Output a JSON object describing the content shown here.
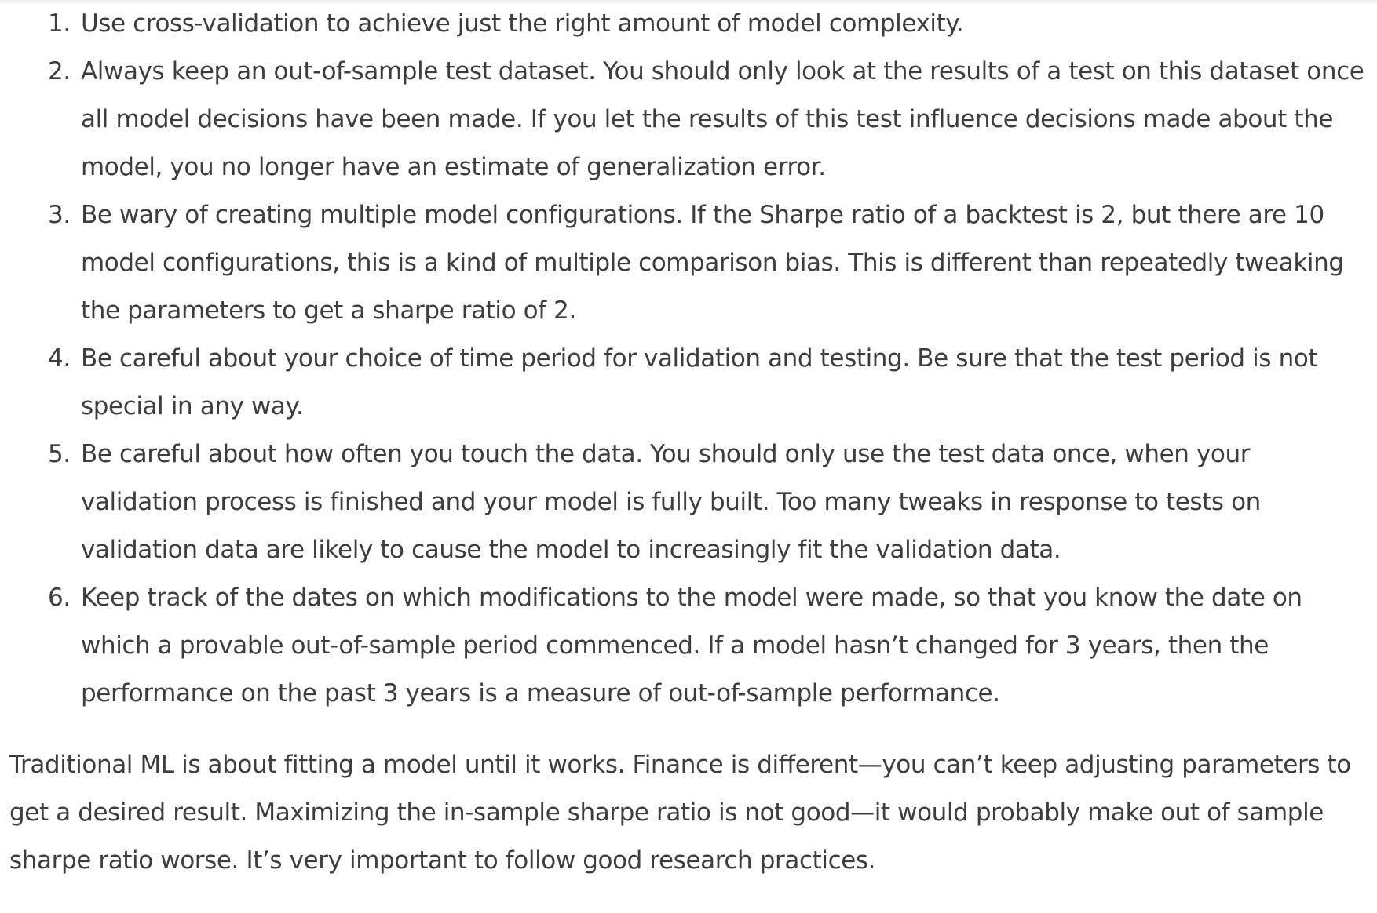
{
  "practices": [
    {
      "number": "1.",
      "text": "Use cross-validation to achieve just the right amount of model complexity."
    },
    {
      "number": "2.",
      "text": "Always keep an out-of-sample test dataset. You should only look at the results of a test on this dataset once all model decisions have been made. If you let the results of this test influence decisions made about the model, you no longer have an estimate of generalization error."
    },
    {
      "number": "3.",
      "text": "Be wary of creating multiple model configurations. If the Sharpe ratio of a backtest is 2, but there are 10 model configurations, this is a kind of multiple comparison bias. This is different than repeatedly tweaking the parameters to get a sharpe ratio of 2."
    },
    {
      "number": "4.",
      "text": "Be careful about your choice of time period for validation and testing. Be sure that the test period is not special in any way."
    },
    {
      "number": "5.",
      "text": "Be careful about how often you touch the data. You should only use the test data once, when your validation process is finished and your model is fully built. Too many tweaks in response to tests on validation data are likely to cause the model to increasingly fit the validation data."
    },
    {
      "number": "6.",
      "text": "Keep track of the dates on which modifications to the model were made, so that you know the date on which a provable out-of-sample period commenced. If a model hasn’t changed for 3 years, then the performance on the past 3 years is a measure of out-of-sample performance."
    }
  ],
  "summary": "Traditional ML is about fitting a model until it works. Finance is different—you can’t keep adjusting parameters to get a desired result. Maximizing the in-sample sharpe ratio is not good—it would probably make out of sample sharpe ratio worse. It’s very important to follow good research practices."
}
